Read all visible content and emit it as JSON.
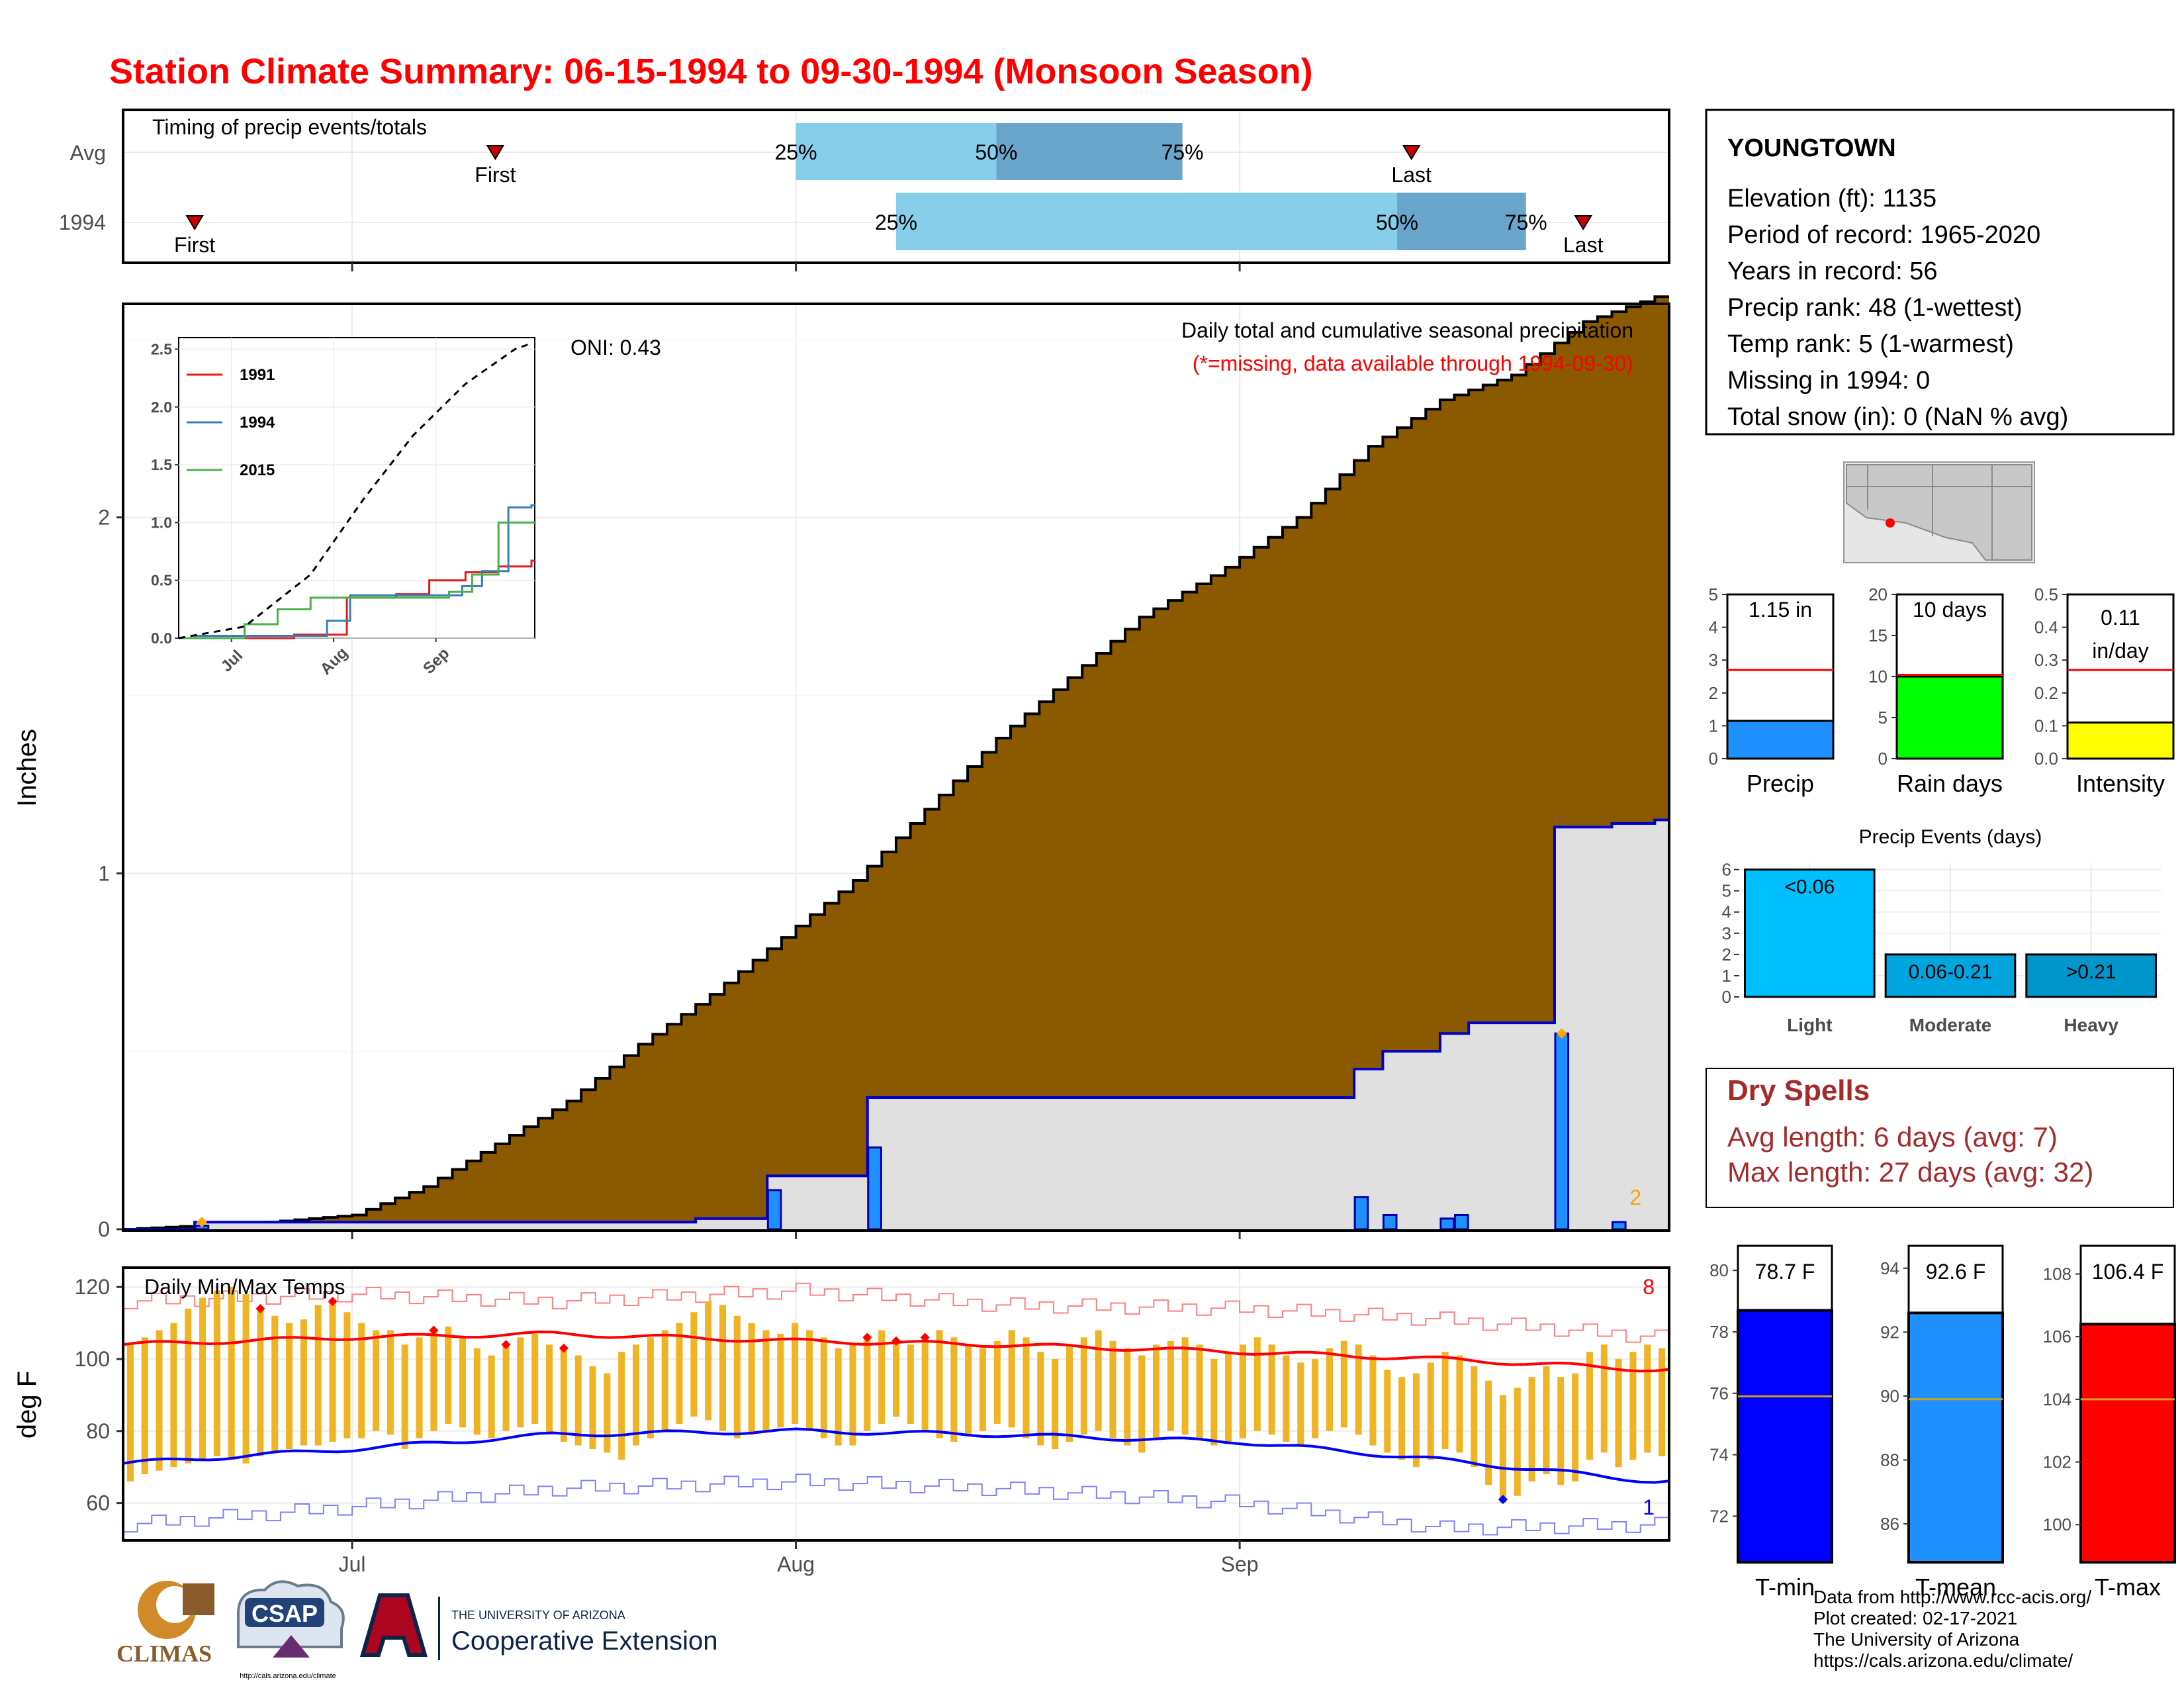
{
  "title": "Station Climate Summary: 06-15-1994 to 09-30-1994 (Monsoon Season)",
  "timing": {
    "title": "Timing of precip events/totals",
    "rows": [
      "Avg",
      "1994"
    ],
    "first_label": "First",
    "last_label": "Last",
    "q25_label": "25%",
    "q50_label": "50%",
    "q75_label": "75%",
    "avg": {
      "first": "1994-07-11",
      "q25": "1994-08-01",
      "q50": "1994-08-15",
      "q75": "1994-08-28",
      "last": "1994-09-13"
    },
    "y1994": {
      "first": "1994-06-20",
      "q25": "1994-08-08",
      "q50": "1994-09-12",
      "q75": "1994-09-21",
      "last": "1994-09-25"
    }
  },
  "precip": {
    "ylabel": "Inches",
    "title": "Daily total and cumulative seasonal precipitation",
    "subtitle": "(*=missing, data available through 1994-09-30)",
    "oni": "ONI: 0.43",
    "missing_count": "2"
  },
  "inset": {
    "legend": [
      "1991",
      "1994",
      "2015"
    ]
  },
  "temps": {
    "title": "Daily Min/Max Temps",
    "ylabel": "deg F",
    "record_high_count": "8",
    "record_low_count": "1"
  },
  "x_ticks": [
    "Jul",
    "Aug",
    "Sep"
  ],
  "station": {
    "name": "YOUNGTOWN",
    "lines": [
      "Elevation (ft): 1135",
      "Period of record: 1965-2020",
      "Years in record: 56",
      "Precip rank: 48 (1-wettest)",
      "Temp rank: 5 (1-warmest)",
      "Missing in 1994: 0",
      "Total snow (in): 0 (NaN % avg)"
    ]
  },
  "mini_bars": [
    {
      "label": "Precip",
      "value_text": "1.15 in",
      "value": 1.15,
      "avg": 2.7,
      "ymax": 5,
      "ticks": [
        "0",
        "1",
        "2",
        "3",
        "4",
        "5"
      ],
      "color": "#1e90ff"
    },
    {
      "label": "Rain days",
      "value_text": "10 days",
      "value": 10,
      "avg": 10.2,
      "ymax": 20,
      "ticks": [
        "0",
        "5",
        "10",
        "15",
        "20"
      ],
      "color": "#00ff00"
    },
    {
      "label": "Intensity",
      "value_text": "0.11 in/day",
      "value": 0.11,
      "avg": 0.27,
      "ymax": 0.5,
      "ticks": [
        "0.0",
        "0.1",
        "0.2",
        "0.3",
        "0.4",
        "0.5"
      ],
      "color": "#ffff00"
    }
  ],
  "events": {
    "title": "Precip Events (days)",
    "categories": [
      "Light",
      "Moderate",
      "Heavy"
    ],
    "bar_labels": [
      "<0.06",
      "0.06-0.21",
      ">0.21"
    ],
    "values": [
      6,
      2,
      2
    ],
    "ticks": [
      "0",
      "1",
      "2",
      "3",
      "4",
      "5",
      "6"
    ],
    "colors": [
      "#00bfff",
      "#00a5e0",
      "#0096cc"
    ]
  },
  "dry": {
    "title": "Dry Spells",
    "avg_line": "Avg length: 6 days (avg: 7)",
    "max_line": "Max length: 27 days (avg: 32)"
  },
  "temp_bars": [
    {
      "label": "T-min",
      "value_text": "78.7 F",
      "value": 78.7,
      "avg": 75.9,
      "ymin": 70.5,
      "ymax": 80.8,
      "ticks": [
        72,
        74,
        76,
        78,
        80
      ],
      "color": "#0000ff"
    },
    {
      "label": "T-mean",
      "value_text": "92.6 F",
      "value": 92.6,
      "avg": 89.9,
      "ymin": 84.8,
      "ymax": 94.7,
      "ticks": [
        86,
        88,
        90,
        92,
        94
      ],
      "color": "#1e90ff"
    },
    {
      "label": "T-max",
      "value_text": "106.4 F",
      "value": 106.4,
      "avg": 104.0,
      "ymin": 98.8,
      "ymax": 108.9,
      "ticks": [
        100,
        102,
        104,
        106,
        108
      ],
      "color": "#ff0000"
    }
  ],
  "footer": {
    "lines": [
      "Data from http://www.rcc-acis.org/",
      "Plot created: 02-17-2021",
      "The University of Arizona",
      "https://cals.arizona.edu/climate/"
    ],
    "climas": "CLIMAS",
    "csap": "CSAP",
    "csap_url": "http://cals.arizona.edu/climate",
    "ua_small": "THE UNIVERSITY OF ARIZONA",
    "ua_big": "Cooperative Extension"
  },
  "chart_data": [
    {
      "type": "area",
      "title": "Daily total and cumulative seasonal precipitation",
      "ylabel": "Inches",
      "ylim": [
        0,
        2.6
      ],
      "x_range": [
        "1994-06-15",
        "1994-09-30"
      ],
      "yticks": [
        0,
        1,
        2
      ],
      "series": [
        {
          "name": "avg_cumulative",
          "x": [
            "1994-06-15",
            "1994-06-20",
            "1994-06-25",
            "1994-07-01",
            "1994-07-06",
            "1994-07-11",
            "1994-07-16",
            "1994-07-21",
            "1994-07-26",
            "1994-07-31",
            "1994-08-05",
            "1994-08-10",
            "1994-08-15",
            "1994-08-20",
            "1994-08-25",
            "1994-08-31",
            "1994-09-05",
            "1994-09-10",
            "1994-09-15",
            "1994-09-20",
            "1994-09-25",
            "1994-09-30"
          ],
          "values": [
            0.0,
            0.01,
            0.02,
            0.04,
            0.12,
            0.24,
            0.36,
            0.52,
            0.66,
            0.82,
            0.98,
            1.18,
            1.38,
            1.55,
            1.72,
            1.86,
            2.0,
            2.2,
            2.33,
            2.4,
            2.55,
            2.62
          ]
        },
        {
          "name": "1994_cumulative",
          "x": [
            "1994-06-15",
            "1994-06-20",
            "1994-07-25",
            "1994-07-30",
            "1994-08-06",
            "1994-09-09",
            "1994-09-11",
            "1994-09-15",
            "1994-09-17",
            "1994-09-23",
            "1994-09-27",
            "1994-09-30"
          ],
          "values": [
            0.0,
            0.02,
            0.03,
            0.15,
            0.37,
            0.45,
            0.5,
            0.55,
            0.58,
            1.13,
            1.14,
            1.15
          ]
        },
        {
          "name": "1994_daily",
          "x": [
            "1994-06-20",
            "1994-07-30",
            "1994-08-06",
            "1994-09-09",
            "1994-09-11",
            "1994-09-15",
            "1994-09-16",
            "1994-09-23",
            "1994-09-27"
          ],
          "values": [
            0.01,
            0.11,
            0.23,
            0.09,
            0.04,
            0.03,
            0.04,
            0.55,
            0.02
          ]
        }
      ]
    },
    {
      "type": "line",
      "title": "",
      "xlabel": "",
      "ylim": [
        0,
        2.6
      ],
      "x_ticks": [
        "Jul",
        "Aug",
        "Sep"
      ],
      "yticks": [
        0.0,
        0.5,
        1.0,
        1.5,
        2.0,
        2.5
      ],
      "series": [
        {
          "name": "1991",
          "x": [
            "1994-06-15",
            "1994-07-20",
            "1994-08-05",
            "1994-08-20",
            "1994-08-30",
            "1994-09-10",
            "1994-09-20",
            "1994-09-30"
          ],
          "values": [
            0.0,
            0.03,
            0.35,
            0.38,
            0.5,
            0.57,
            0.62,
            0.67
          ]
        },
        {
          "name": "1994",
          "x": [
            "1994-06-15",
            "1994-06-20",
            "1994-07-30",
            "1994-08-06",
            "1994-09-09",
            "1994-09-15",
            "1994-09-23",
            "1994-09-30"
          ],
          "values": [
            0.0,
            0.02,
            0.15,
            0.37,
            0.45,
            0.58,
            1.13,
            1.15
          ]
        },
        {
          "name": "2015",
          "x": [
            "1994-06-15",
            "1994-07-05",
            "1994-07-15",
            "1994-07-25",
            "1994-08-10",
            "1994-09-05",
            "1994-09-12",
            "1994-09-20",
            "1994-09-30"
          ],
          "values": [
            0.0,
            0.12,
            0.25,
            0.35,
            0.35,
            0.4,
            0.55,
            1.0,
            1.0
          ]
        },
        {
          "name": "average",
          "x": [
            "1994-06-15",
            "1994-07-05",
            "1994-07-25",
            "1994-08-10",
            "1994-08-25",
            "1994-09-10",
            "1994-09-25",
            "1994-09-30"
          ],
          "values": [
            0.0,
            0.1,
            0.55,
            1.2,
            1.75,
            2.2,
            2.5,
            2.55
          ]
        }
      ]
    },
    {
      "type": "bar",
      "title": "Daily Min/Max Temps",
      "ylabel": "deg F",
      "ylim": [
        50,
        125
      ],
      "yticks": [
        60,
        80,
        100,
        120
      ],
      "x_range": [
        "1994-06-15",
        "1994-09-30"
      ],
      "avg_max": {
        "x": [
          "1994-06-15",
          "1994-07-01",
          "1994-07-15",
          "1994-08-01",
          "1994-08-15",
          "1994-09-01",
          "1994-09-15",
          "1994-09-30"
        ],
        "values": [
          104,
          106,
          107,
          105,
          104,
          102,
          100,
          97
        ]
      },
      "avg_min": {
        "x": [
          "1994-06-15",
          "1994-07-01",
          "1994-07-15",
          "1994-08-01",
          "1994-08-15",
          "1994-09-01",
          "1994-09-15",
          "1994-09-30"
        ],
        "values": [
          71,
          75,
          79,
          80,
          79,
          77,
          72,
          66
        ]
      },
      "record_high": {
        "x": [
          "1994-06-15",
          "1994-07-01",
          "1994-07-15",
          "1994-08-01",
          "1994-08-15",
          "1994-09-01",
          "1994-09-15",
          "1994-09-30"
        ],
        "values": [
          116,
          118,
          116,
          119,
          115,
          114,
          111,
          106
        ]
      },
      "record_low": {
        "x": [
          "1994-06-15",
          "1994-07-01",
          "1994-07-15",
          "1994-08-01",
          "1994-08-15",
          "1994-09-01",
          "1994-09-15",
          "1994-09-30"
        ],
        "values": [
          54,
          59,
          64,
          66,
          64,
          60,
          53,
          54
        ]
      },
      "daily_low": [
        66,
        68,
        69,
        70,
        71,
        72,
        73,
        72,
        71,
        73,
        74,
        75,
        76,
        76,
        77,
        78,
        78,
        80,
        79,
        75,
        78,
        80,
        82,
        81,
        79,
        78,
        80,
        81,
        82,
        79,
        77,
        76,
        75,
        74,
        72,
        76,
        78,
        80,
        82,
        84,
        83,
        80,
        78,
        79,
        80,
        81,
        82,
        80,
        78,
        76,
        76,
        80,
        82,
        84,
        82,
        80,
        78,
        77,
        79,
        80,
        82,
        81,
        78,
        76,
        75,
        77,
        79,
        80,
        78,
        76,
        74,
        78,
        80,
        79,
        78,
        76,
        77,
        78,
        80,
        79,
        77,
        76,
        78,
        80,
        81,
        79,
        76,
        74,
        72,
        70,
        72,
        75,
        74,
        70,
        65,
        60,
        62,
        66,
        68,
        65,
        66,
        72,
        74,
        70,
        72,
        74,
        73
      ],
      "daily_high": [
        104,
        106,
        108,
        110,
        114,
        117,
        119,
        120,
        118,
        114,
        112,
        110,
        111,
        115,
        116,
        113,
        110,
        108,
        108,
        104,
        106,
        108,
        109,
        106,
        103,
        101,
        104,
        106,
        107,
        104,
        103,
        101,
        98,
        96,
        102,
        104,
        106,
        108,
        110,
        113,
        116,
        115,
        112,
        110,
        108,
        107,
        110,
        108,
        106,
        103,
        104,
        106,
        108,
        105,
        104,
        106,
        108,
        106,
        104,
        103,
        105,
        108,
        106,
        102,
        100,
        104,
        106,
        108,
        105,
        103,
        101,
        104,
        105,
        106,
        104,
        100,
        102,
        104,
        106,
        104,
        101,
        99,
        100,
        103,
        105,
        104,
        101,
        97,
        95,
        96,
        99,
        102,
        101,
        98,
        94,
        90,
        92,
        95,
        98,
        95,
        96,
        102,
        104,
        100,
        102,
        104,
        103
      ],
      "record_high_count": 8,
      "record_low_count": 1
    }
  ]
}
